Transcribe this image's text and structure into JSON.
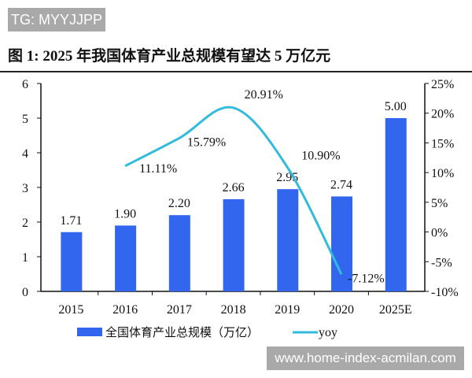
{
  "watermark_top": "TG: MYYJJPP",
  "watermark_bottom": "www.home-index-acmilan.com",
  "chart_data": {
    "type": "bar+line",
    "title": "图 1:  2025 年我国体育产业总规模有望达 5 万亿元",
    "categories": [
      "2015",
      "2016",
      "2017",
      "2018",
      "2019",
      "2020",
      "2025E"
    ],
    "series": [
      {
        "name": "全国体育产业总规模（万亿）",
        "type": "bar",
        "axis": "left",
        "color": "#3366ee",
        "values": [
          1.71,
          1.9,
          2.2,
          2.66,
          2.95,
          2.74,
          5.0
        ],
        "labels": [
          "1.71",
          "1.90",
          "2.20",
          "2.66",
          "2.95",
          "2.74",
          "5.00"
        ]
      },
      {
        "name": "yoy",
        "type": "line",
        "axis": "right",
        "color": "#33bbdd",
        "values": [
          null,
          11.11,
          15.79,
          20.91,
          10.9,
          -7.12,
          null
        ],
        "labels": [
          null,
          "11.11%",
          "15.79%",
          "20.91%",
          "10.90%",
          "-7.12%",
          null
        ]
      }
    ],
    "ylim_left": [
      0,
      6
    ],
    "yticks_left": [
      "0",
      "1",
      "2",
      "3",
      "4",
      "5",
      "6"
    ],
    "ylim_right": [
      -10,
      25
    ],
    "yticks_right": [
      "-10%",
      "-5%",
      "0%",
      "5%",
      "10%",
      "15%",
      "20%",
      "25%"
    ],
    "legend": "bottom",
    "grid": false
  }
}
